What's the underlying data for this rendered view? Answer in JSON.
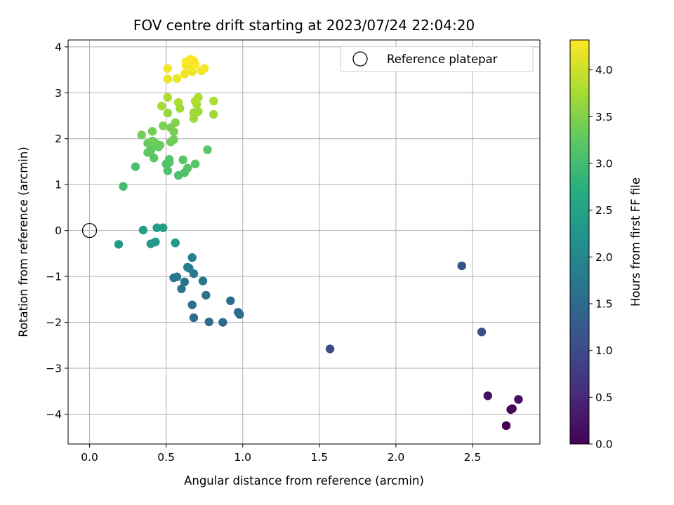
{
  "chart_data": {
    "type": "scatter",
    "title": "FOV centre drift starting at 2023/07/24 22:04:20",
    "xlabel": "Angular distance from reference (arcmin)",
    "ylabel": "Rotation from reference (arcmin)",
    "xlim": [
      -0.14,
      2.94
    ],
    "ylim": [
      -4.65,
      4.15
    ],
    "xticks": [
      0.0,
      0.5,
      1.0,
      1.5,
      2.0,
      2.5
    ],
    "xtick_labels": [
      "0.0",
      "0.5",
      "1.0",
      "1.5",
      "2.0",
      "2.5"
    ],
    "yticks": [
      -4,
      -3,
      -2,
      -1,
      0,
      1,
      2,
      3,
      4
    ],
    "ytick_labels": [
      "−4",
      "−3",
      "−2",
      "−1",
      "0",
      "1",
      "2",
      "3",
      "4"
    ],
    "grid": true,
    "legend": {
      "position": "top-right",
      "entries": [
        {
          "label": "Reference platepar",
          "marker": "open-circle"
        }
      ]
    },
    "reference_point": {
      "x": 0.0,
      "y": 0.0
    },
    "colorbar": {
      "label": "Hours from first FF file",
      "colormap": "viridis",
      "range": [
        0.0,
        4.32
      ],
      "ticks": [
        0.0,
        0.5,
        1.0,
        1.5,
        2.0,
        2.5,
        3.0,
        3.5,
        4.0
      ],
      "tick_labels": [
        "0.0",
        "0.5",
        "1.0",
        "1.5",
        "2.0",
        "2.5",
        "3.0",
        "3.5",
        "4.0"
      ]
    },
    "point_fields": [
      "x",
      "y",
      "hours"
    ],
    "points": [
      [
        2.72,
        -4.25,
        0.0
      ],
      [
        2.75,
        -3.9,
        0.05
      ],
      [
        2.76,
        -3.88,
        0.1
      ],
      [
        2.8,
        -3.68,
        0.15
      ],
      [
        2.6,
        -3.6,
        0.2
      ],
      [
        1.57,
        -2.58,
        1.0
      ],
      [
        2.56,
        -2.21,
        1.05
      ],
      [
        2.43,
        -0.77,
        1.1
      ],
      [
        0.87,
        -2.0,
        1.5
      ],
      [
        0.78,
        -1.99,
        1.55
      ],
      [
        0.68,
        -1.9,
        1.55
      ],
      [
        0.98,
        -1.83,
        1.5
      ],
      [
        0.97,
        -1.78,
        1.52
      ],
      [
        0.92,
        -1.53,
        1.55
      ],
      [
        0.67,
        -1.62,
        1.6
      ],
      [
        0.76,
        -1.41,
        1.62
      ],
      [
        0.6,
        -1.27,
        1.65
      ],
      [
        0.62,
        -1.12,
        1.68
      ],
      [
        0.74,
        -1.1,
        1.7
      ],
      [
        0.55,
        -1.03,
        1.72
      ],
      [
        0.57,
        -1.01,
        1.74
      ],
      [
        0.68,
        -0.94,
        1.76
      ],
      [
        0.64,
        -0.8,
        1.8
      ],
      [
        0.65,
        -0.82,
        1.82
      ],
      [
        0.67,
        -0.59,
        1.85
      ],
      [
        0.19,
        -0.3,
        2.3
      ],
      [
        0.4,
        -0.29,
        2.35
      ],
      [
        0.43,
        -0.25,
        2.35
      ],
      [
        0.56,
        -0.27,
        2.32
      ],
      [
        0.35,
        0.01,
        2.4
      ],
      [
        0.44,
        0.06,
        2.4
      ],
      [
        0.48,
        0.06,
        2.42
      ],
      [
        0.22,
        0.96,
        3.0
      ],
      [
        0.3,
        1.39,
        3.05
      ],
      [
        0.58,
        1.2,
        3.1
      ],
      [
        0.62,
        1.26,
        3.12
      ],
      [
        0.51,
        1.3,
        3.1
      ],
      [
        0.64,
        1.36,
        3.15
      ],
      [
        0.69,
        1.45,
        3.15
      ],
      [
        0.5,
        1.45,
        3.1
      ],
      [
        0.52,
        1.48,
        3.12
      ],
      [
        0.52,
        1.55,
        3.15
      ],
      [
        0.61,
        1.54,
        3.18
      ],
      [
        0.77,
        1.76,
        3.2
      ],
      [
        0.42,
        1.58,
        3.2
      ],
      [
        0.38,
        1.7,
        3.25
      ],
      [
        0.4,
        1.75,
        3.25
      ],
      [
        0.45,
        1.82,
        3.28
      ],
      [
        0.38,
        1.9,
        3.3
      ],
      [
        0.43,
        1.9,
        3.3
      ],
      [
        0.46,
        1.86,
        3.32
      ],
      [
        0.41,
        1.95,
        3.35
      ],
      [
        0.53,
        1.93,
        3.35
      ],
      [
        0.55,
        1.98,
        3.38
      ],
      [
        0.34,
        2.08,
        3.4
      ],
      [
        0.41,
        2.16,
        3.4
      ],
      [
        0.55,
        2.15,
        3.42
      ],
      [
        0.53,
        2.24,
        3.45
      ],
      [
        0.48,
        2.28,
        3.45
      ],
      [
        0.56,
        2.35,
        3.5
      ],
      [
        0.68,
        2.44,
        3.7
      ],
      [
        0.81,
        2.53,
        3.7
      ],
      [
        0.51,
        2.56,
        3.65
      ],
      [
        0.68,
        2.57,
        3.7
      ],
      [
        0.71,
        2.59,
        3.72
      ],
      [
        0.59,
        2.66,
        3.72
      ],
      [
        0.47,
        2.71,
        3.75
      ],
      [
        0.7,
        2.75,
        3.75
      ],
      [
        0.58,
        2.79,
        3.78
      ],
      [
        0.69,
        2.82,
        3.78
      ],
      [
        0.81,
        2.82,
        3.8
      ],
      [
        0.71,
        2.9,
        3.8
      ],
      [
        0.51,
        2.9,
        3.82
      ],
      [
        0.51,
        3.3,
        4.2
      ],
      [
        0.57,
        3.31,
        4.2
      ],
      [
        0.62,
        3.41,
        4.22
      ],
      [
        0.67,
        3.46,
        4.22
      ],
      [
        0.73,
        3.48,
        4.25
      ],
      [
        0.75,
        3.53,
        4.25
      ],
      [
        0.51,
        3.53,
        4.25
      ],
      [
        0.66,
        3.55,
        4.28
      ],
      [
        0.63,
        3.6,
        4.28
      ],
      [
        0.69,
        3.62,
        4.3
      ],
      [
        0.63,
        3.68,
        4.3
      ],
      [
        0.68,
        3.7,
        4.3
      ],
      [
        0.66,
        3.73,
        4.32
      ]
    ]
  }
}
